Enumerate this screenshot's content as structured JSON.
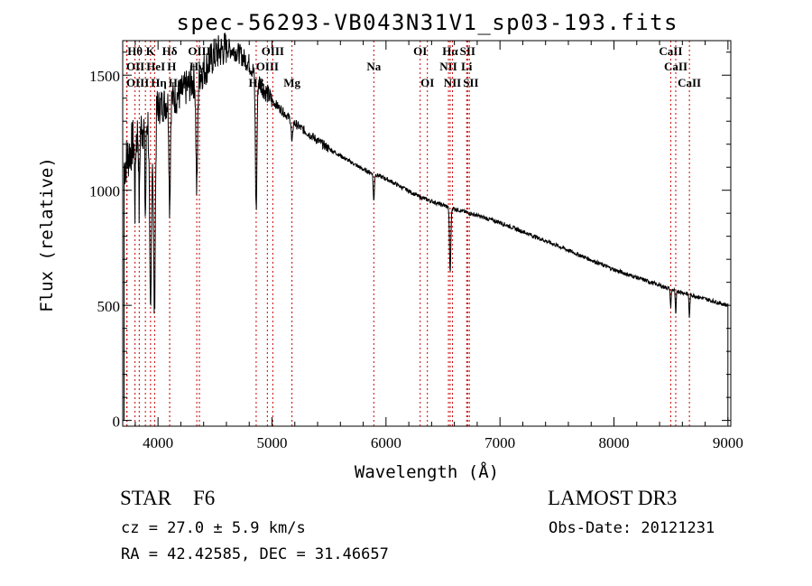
{
  "chart_data": {
    "type": "line",
    "title": "spec-56293-VB043N31V1_sp03-193.fits",
    "xlabel": "Wavelength (Å)",
    "ylabel": "Flux (relative)",
    "xlim": [
      3690,
      9025
    ],
    "ylim": [
      -25,
      1650
    ],
    "xticks": [
      4000,
      5000,
      6000,
      7000,
      8000,
      9000
    ],
    "xtick_labels": [
      "4000",
      "5000",
      "6000",
      "7000",
      "8000",
      "9000"
    ],
    "yticks": [
      0,
      500,
      1000,
      1500
    ],
    "ytick_labels": [
      "0",
      "500",
      "1000",
      "1500"
    ],
    "grid": false,
    "continuum": [
      [
        3700,
        1100
      ],
      [
        3800,
        1230
      ],
      [
        3900,
        1300
      ],
      [
        4000,
        1360
      ],
      [
        4200,
        1420
      ],
      [
        4400,
        1520
      ],
      [
        4500,
        1590
      ],
      [
        4600,
        1620
      ],
      [
        4700,
        1600
      ],
      [
        4800,
        1550
      ],
      [
        4900,
        1460
      ],
      [
        5000,
        1390
      ],
      [
        5200,
        1290
      ],
      [
        5500,
        1180
      ],
      [
        5800,
        1090
      ],
      [
        6000,
        1050
      ],
      [
        6300,
        970
      ],
      [
        6500,
        935
      ],
      [
        6700,
        905
      ],
      [
        7000,
        860
      ],
      [
        7500,
        760
      ],
      [
        8000,
        655
      ],
      [
        8500,
        570
      ],
      [
        9000,
        500
      ]
    ],
    "absorption": [
      [
        3934,
        900,
        8
      ],
      [
        3968,
        850,
        8
      ],
      [
        3889,
        400,
        5
      ],
      [
        3835,
        350,
        4
      ],
      [
        3798,
        300,
        4
      ],
      [
        4102,
        450,
        6
      ],
      [
        4340,
        500,
        7
      ],
      [
        4861,
        580,
        7
      ],
      [
        5175,
        100,
        6
      ],
      [
        5893,
        120,
        5
      ],
      [
        6563,
        280,
        6
      ],
      [
        8498,
        80,
        4
      ],
      [
        8542,
        110,
        4
      ],
      [
        8662,
        100,
        4
      ]
    ],
    "line_markers": [
      {
        "wave": 3727,
        "label": "OII",
        "row": 2
      },
      {
        "wave": 3727,
        "label": "OIII",
        "row": 3
      },
      {
        "wave": 3798,
        "label": "Hθ",
        "row": 1
      },
      {
        "wave": 3835,
        "label": "Hη",
        "row": 3
      },
      {
        "wave": 3889,
        "label": "HeI",
        "row": 2
      },
      {
        "wave": 3934,
        "label": "K",
        "row": 1
      },
      {
        "wave": 3970,
        "label": "Hε",
        "row": 3
      },
      {
        "wave": 4102,
        "label": "Hδ",
        "row": 1
      },
      {
        "wave": 4102,
        "label": "H",
        "row": 2
      },
      {
        "wave": 4340,
        "label": "Hγ",
        "row": 2
      },
      {
        "wave": 4363,
        "label": "OIII",
        "row": 1
      },
      {
        "wave": 4861,
        "label": "Hβ",
        "row": 3
      },
      {
        "wave": 4959,
        "label": "OIII",
        "row": 2
      },
      {
        "wave": 5007,
        "label": "OIII",
        "row": 1
      },
      {
        "wave": 5175,
        "label": "Mg",
        "row": 3
      },
      {
        "wave": 5893,
        "label": "Na",
        "row": 2
      },
      {
        "wave": 6300,
        "label": "OI",
        "row": 1
      },
      {
        "wave": 6363,
        "label": "OI",
        "row": 3
      },
      {
        "wave": 6548,
        "label": "NII",
        "row": 2
      },
      {
        "wave": 6563,
        "label": "Hα",
        "row": 1
      },
      {
        "wave": 6583,
        "label": "NII",
        "row": 3
      },
      {
        "wave": 6708,
        "label": "Li",
        "row": 2
      },
      {
        "wave": 6716,
        "label": "SII",
        "row": 1
      },
      {
        "wave": 6731,
        "label": "SII",
        "row": 3
      },
      {
        "wave": 8498,
        "label": "CaII",
        "row": 1
      },
      {
        "wave": 8542,
        "label": "CaII",
        "row": 2
      },
      {
        "wave": 8662,
        "label": "CaII",
        "row": 3
      }
    ],
    "colors": {
      "spectrum": "#000000",
      "marker": "#cc0000"
    }
  },
  "info": {
    "class_label": "STAR",
    "subclass": "F6",
    "cz": "cz = 27.0 ± 5.9 km/s",
    "radec": "RA =  42.42585, DEC =  31.46657",
    "survey": "LAMOST DR3",
    "obs_date": "Obs-Date: 20121231"
  }
}
